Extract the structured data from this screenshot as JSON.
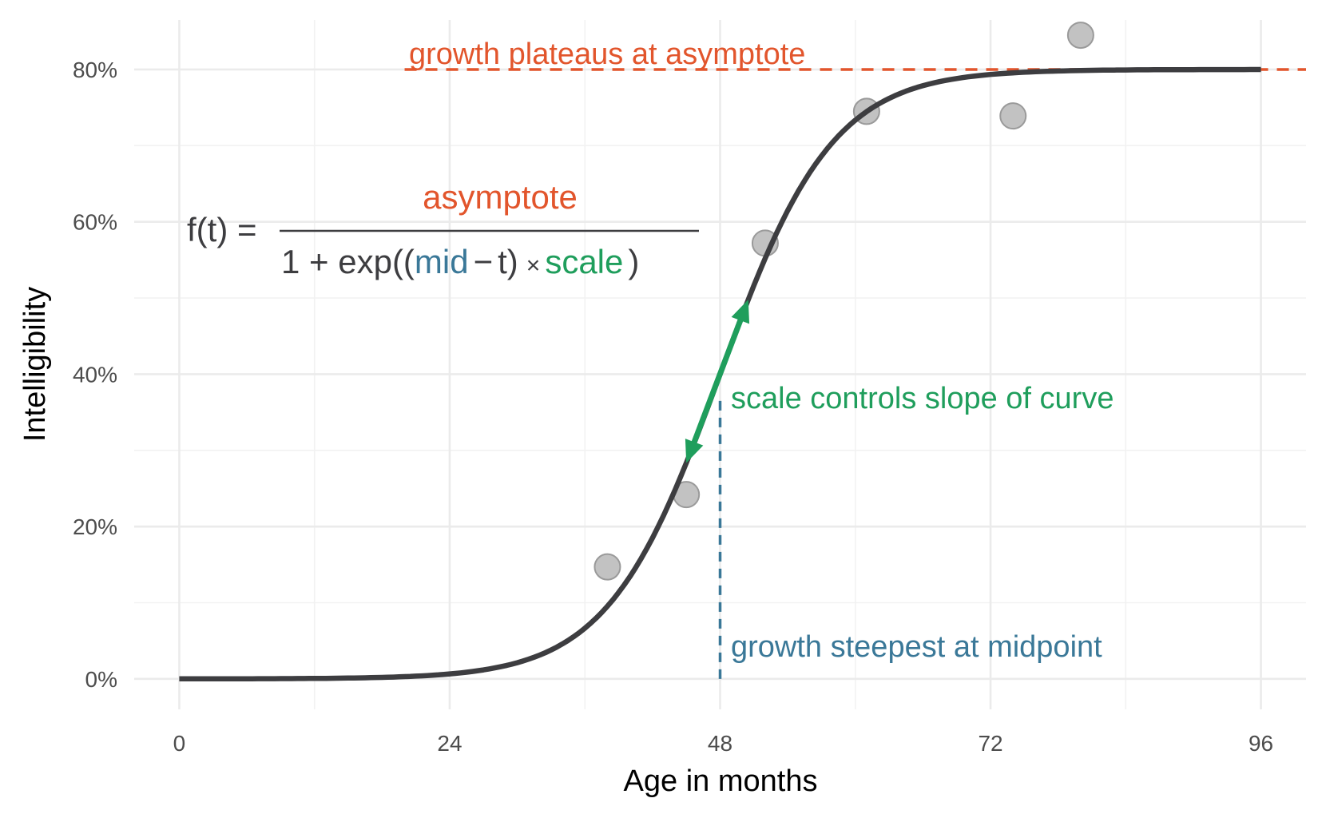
{
  "chart_data": {
    "type": "scatter",
    "xlabel": "Age in months",
    "ylabel": "Intelligibility",
    "xlim": [
      -4,
      100
    ],
    "ylim": [
      -0.04,
      0.865
    ],
    "x_ticks": [
      0,
      24,
      48,
      72,
      96
    ],
    "x_tick_labels": [
      "0",
      "24",
      "48",
      "72",
      "96"
    ],
    "y_ticks": [
      0,
      0.2,
      0.4,
      0.6,
      0.8
    ],
    "y_tick_labels": [
      "0%",
      "20%",
      "40%",
      "60%",
      "80%"
    ],
    "grid": true,
    "points": [
      {
        "x": 38,
        "y": 0.147
      },
      {
        "x": 45,
        "y": 0.242
      },
      {
        "x": 52,
        "y": 0.572
      },
      {
        "x": 61,
        "y": 0.745
      },
      {
        "x": 74,
        "y": 0.739
      },
      {
        "x": 80,
        "y": 0.845
      }
    ],
    "curve": {
      "asymptote": 0.8,
      "mid": 48,
      "scale": 0.2,
      "x_range": [
        0,
        96
      ]
    },
    "asymptote_line": {
      "y": 0.8,
      "x_from": 20,
      "x_to": 100
    },
    "midpoint_line": {
      "x": 48,
      "y_from": 0,
      "y_to": 0.37
    },
    "slope_arrow": {
      "x_from": 45,
      "x_to": 50.5
    },
    "annotations": {
      "plateau": "growth plateaus at asymptote",
      "slope": "scale controls slope of curve",
      "midpoint": "growth steepest at midpoint"
    },
    "formula": {
      "lhs": "f(t) =",
      "numerator": "asymptote",
      "denominator_prefix": "1 + exp((",
      "mid": "mid",
      "minus": "−",
      "t": "t)",
      "times": "×",
      "scale": "scale",
      "close": ")"
    },
    "colors": {
      "curve": "#3d3d40",
      "points": "#b3b3b3",
      "asymptote": "#e2552c",
      "midpoint": "#3a7898",
      "scale": "#1f9e5c"
    }
  }
}
